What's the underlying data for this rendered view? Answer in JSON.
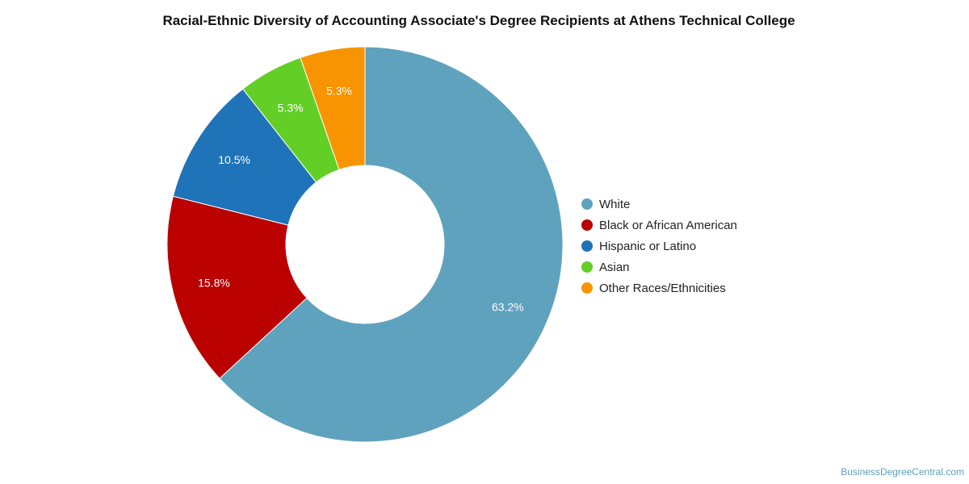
{
  "chart_data": {
    "type": "pie",
    "title": "Racial-Ethnic Diversity of Accounting Associate's Degree Recipients at Athens Technical College",
    "categories": [
      "White",
      "Black or African American",
      "Hispanic or Latino",
      "Asian",
      "Other Races/Ethnicities"
    ],
    "values": [
      63.2,
      15.8,
      10.5,
      5.3,
      5.3
    ],
    "data_labels": [
      "63.2%",
      "15.8%",
      "10.5%",
      "5.3%",
      "5.3%"
    ],
    "colors": [
      "#5ea2be",
      "#bb0000",
      "#1f73b8",
      "#63cf26",
      "#f79400"
    ],
    "donut": true,
    "legend_position": "right"
  },
  "watermark": "BusinessDegreeCentral.com"
}
